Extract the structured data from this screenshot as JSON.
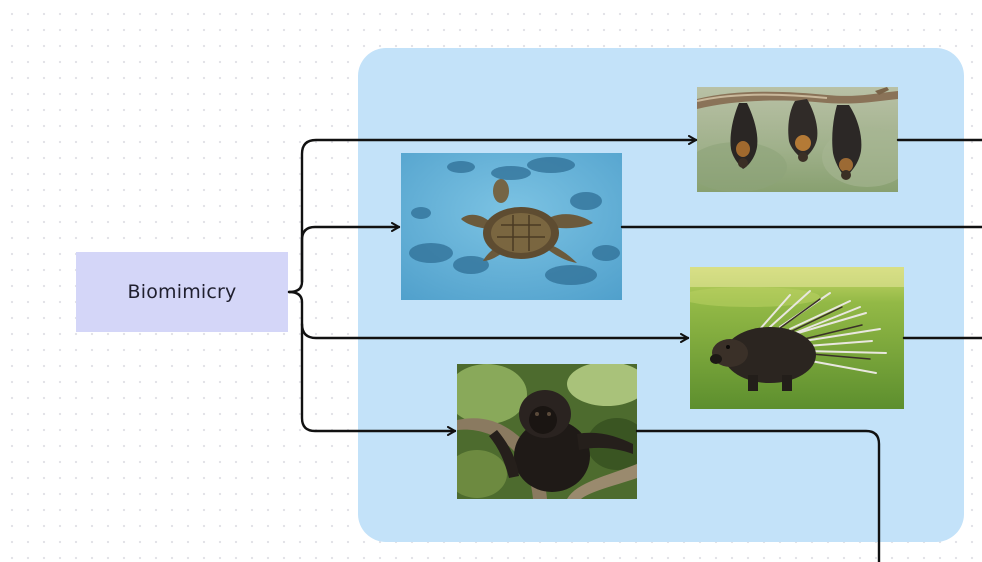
{
  "topic": {
    "label": "Biomimicry"
  },
  "images": [
    {
      "id": "bats",
      "icon": "bats-photo"
    },
    {
      "id": "turtle",
      "icon": "sea-turtle-photo"
    },
    {
      "id": "porcupine",
      "icon": "porcupine-photo"
    },
    {
      "id": "monkey",
      "icon": "howler-monkey-photo"
    }
  ],
  "colors": {
    "panel": "#c3e2f9",
    "topic_node": "#d4d6f8",
    "connector": "#111111"
  }
}
